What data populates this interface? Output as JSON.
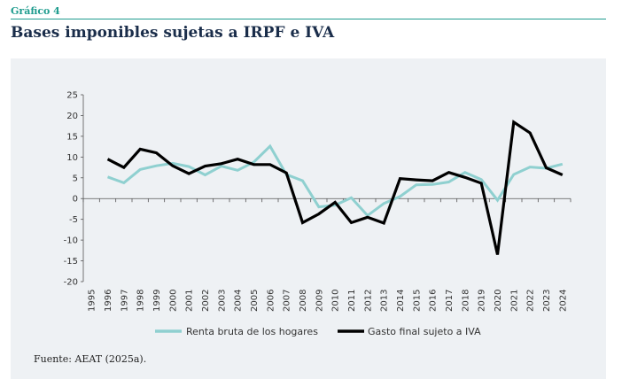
{
  "header": {
    "figure_label": "Gráfico 4",
    "title": "Bases imponibles sujetas a IRPF e IVA"
  },
  "source": "Fuente: AEAT (2025a).",
  "chart_data": {
    "type": "line",
    "title": "",
    "xlabel": "",
    "ylabel": "",
    "x": [
      "1995",
      "1996",
      "1997",
      "1998",
      "1999",
      "2000",
      "2001",
      "2002",
      "2003",
      "2004",
      "2005",
      "2006",
      "2007",
      "2008",
      "2009",
      "2010",
      "2011",
      "2012",
      "2013",
      "2014",
      "2015",
      "2016",
      "2017",
      "2018",
      "2019",
      "2020",
      "2021",
      "2022",
      "2023",
      "2024"
    ],
    "ylim": [
      -20,
      25
    ],
    "yticks": [
      25,
      20,
      15,
      10,
      5,
      0,
      -5,
      -10,
      -15,
      -20
    ],
    "grid": false,
    "legend_position": "bottom",
    "series": [
      {
        "name": "Renta bruta de los hogares",
        "color": "#8fd0d0",
        "values": [
          null,
          5.2,
          3.8,
          7.0,
          7.9,
          8.5,
          7.7,
          5.7,
          7.8,
          6.8,
          8.8,
          12.6,
          5.8,
          4.3,
          -2.0,
          -1.6,
          0.2,
          -4.1,
          -1.2,
          0.5,
          3.3,
          3.4,
          4.0,
          6.3,
          4.6,
          -0.4,
          5.8,
          7.6,
          7.3,
          8.3
        ]
      },
      {
        "name": "Gasto final sujeto a IVA",
        "color": "#000000",
        "values": [
          null,
          9.5,
          7.5,
          11.9,
          11.0,
          7.9,
          6.0,
          7.8,
          8.4,
          9.5,
          8.2,
          8.2,
          6.2,
          -5.8,
          -3.7,
          -0.9,
          -5.8,
          -4.5,
          -5.9,
          4.8,
          4.5,
          4.3,
          6.3,
          5.1,
          3.7,
          -13.5,
          18.4,
          15.8,
          7.4,
          5.7
        ]
      }
    ]
  }
}
